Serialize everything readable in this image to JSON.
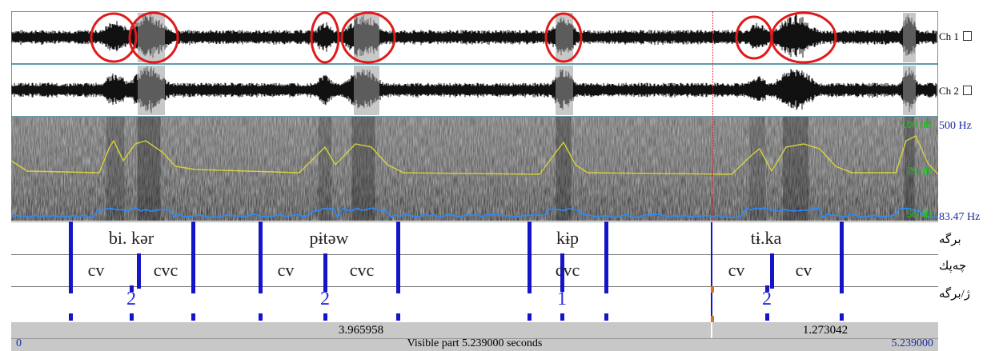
{
  "channels": [
    {
      "label": "Ch 1"
    },
    {
      "label": "Ch 2"
    }
  ],
  "spectrogram": {
    "freq_top": "500 Hz",
    "freq_bottom": "83.47 Hz",
    "db_top": "100 dB",
    "db_mid": "75 dB",
    "db_bottom": "50 dB"
  },
  "tiers": [
    {
      "name": "برگه",
      "intervals": [
        "bi. kər",
        "pɨtəw",
        "kɨp",
        "tɨ.ka"
      ]
    },
    {
      "name": "چەپك",
      "intervals": [
        "cv",
        "cvc",
        "cv",
        "cvc",
        "cvc",
        "cv",
        "cv"
      ]
    },
    {
      "name": "ژ/برگه",
      "points": [
        "2",
        "2",
        "1",
        "2"
      ]
    }
  ],
  "durations": [
    "3.965958",
    "1.273042"
  ],
  "status": {
    "start": "0",
    "visible_text": "Visible part 5.239000 seconds",
    "end": "5.239000"
  },
  "colors": {
    "waveform": "#111111",
    "frame": "#2a7a8f",
    "circle": "#e01a1a",
    "tier_boundary": "#1414c8",
    "pitch": "#d8d23a",
    "intensity": "#2a8cff",
    "cursor": "#e01a1a",
    "db_labels": "#22c022",
    "hz_labels": "#1a2aa0"
  }
}
